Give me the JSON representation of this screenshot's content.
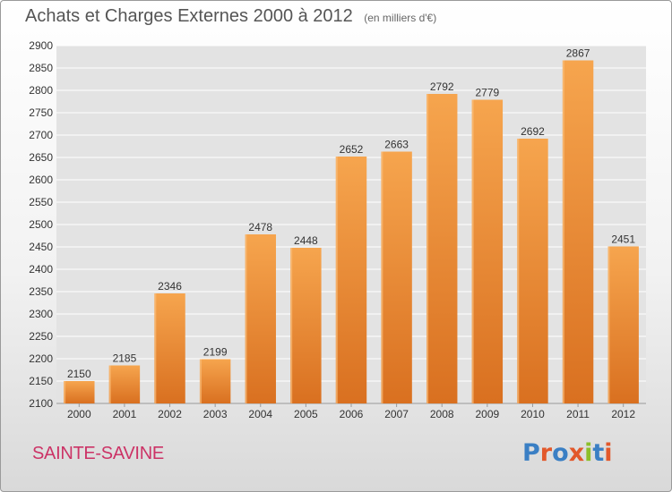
{
  "header": {
    "title": "Achats et Charges Externes 2000 à 2012",
    "subtitle": "(en milliers d'€)"
  },
  "footer": {
    "city": "SAINTE-SAVINE",
    "logo_text": "Proxiti",
    "logo_colors": [
      "#3a7fc4",
      "#e2582b",
      "#3a7fc4",
      "#e2582b",
      "#8cbf2a",
      "#3a7fc4",
      "#e2582b"
    ]
  },
  "colors": {
    "bar_light": "#f6a54e",
    "bar_dark": "#d97020",
    "grid": "#ffffff",
    "plot_bg": "#e3e3e3",
    "text": "#333333"
  },
  "chart_data": {
    "type": "bar",
    "title": "Achats et Charges Externes 2000 à 2012",
    "subtitle": "(en milliers d'€)",
    "categories": [
      "2000",
      "2001",
      "2002",
      "2003",
      "2004",
      "2005",
      "2006",
      "2007",
      "2008",
      "2009",
      "2010",
      "2011",
      "2012"
    ],
    "values": [
      2150,
      2185,
      2346,
      2199,
      2478,
      2448,
      2652,
      2663,
      2792,
      2779,
      2692,
      2867,
      2451
    ],
    "ylim": [
      2100,
      2900
    ],
    "yticks": [
      2100,
      2150,
      2200,
      2250,
      2300,
      2350,
      2400,
      2450,
      2500,
      2550,
      2600,
      2650,
      2700,
      2750,
      2800,
      2850,
      2900
    ],
    "grid": true,
    "data_labels": true,
    "xlabel": "",
    "ylabel": ""
  }
}
